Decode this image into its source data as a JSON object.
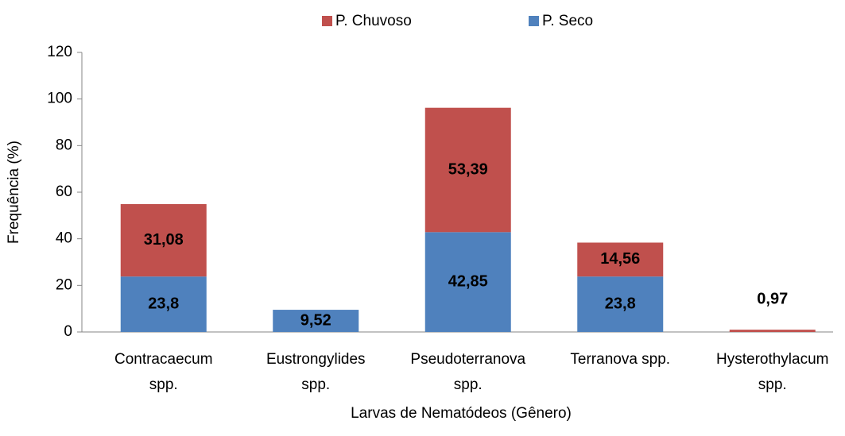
{
  "chart_data": {
    "type": "stacked_bar",
    "xlabel": "Larvas de Nematódeos (Gênero)",
    "ylabel": "Frequência  (%)",
    "categories": [
      "Contracaecum spp.",
      "Eustrongylides spp.",
      "Pseudoterranova spp.",
      "Terranova spp.",
      "Hysterothylacum spp."
    ],
    "series": [
      {
        "name": "P. Seco",
        "color": "#4f81bd",
        "values": [
          23.8,
          9.52,
          42.85,
          23.8,
          null
        ],
        "value_labels": [
          "23,8",
          "9,52",
          "42,85",
          "23,8",
          null
        ]
      },
      {
        "name": "P. Chuvoso",
        "color": "#c0504d",
        "values": [
          31.08,
          null,
          53.39,
          14.56,
          0.97
        ],
        "value_labels": [
          "31,08",
          null,
          "53,39",
          "14,56",
          "0,97"
        ]
      }
    ],
    "legend_order": [
      1,
      0
    ],
    "legend": "top",
    "ylim": [
      0,
      120
    ],
    "yticks": [
      0,
      20,
      40,
      60,
      80,
      100,
      120
    ],
    "grid": false
  }
}
